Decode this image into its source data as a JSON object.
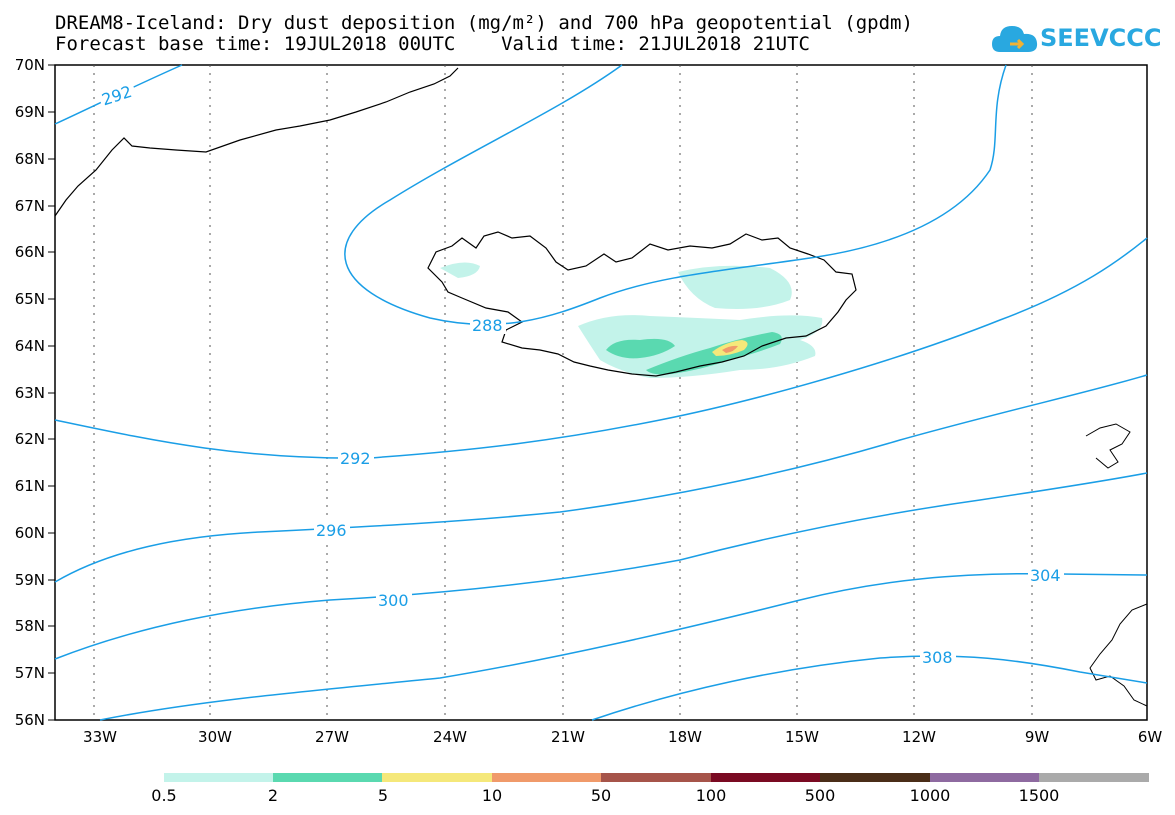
{
  "header": {
    "title_line1": "DREAM8-Iceland: Dry dust deposition (mg/m²) and 700 hPa geopotential (gpdm)",
    "title_line2": "Forecast base time: 19JUL2018 00UTC    Valid time: 21JUL2018 21UTC"
  },
  "logo": {
    "text": "SEEVCCC",
    "icon": "cloud-icon",
    "color": "#29a8e0"
  },
  "map": {
    "lat_labels": [
      "70N",
      "69N",
      "68N",
      "67N",
      "66N",
      "65N",
      "64N",
      "63N",
      "62N",
      "61N",
      "60N",
      "59N",
      "58N",
      "57N",
      "56N"
    ],
    "lon_labels": [
      "33W",
      "30W",
      "27W",
      "24W",
      "21W",
      "18W",
      "15W",
      "12W",
      "9W",
      "6W"
    ],
    "contour_color": "#1a9ee6",
    "contour_labels": [
      "292",
      "288",
      "292",
      "296",
      "300",
      "304",
      "308"
    ]
  },
  "colorbar": {
    "colors": [
      "#c3f3ea",
      "#5ad9b0",
      "#f5e87a",
      "#f09a6a",
      "#a6544a",
      "#7a0a22",
      "#4a2d18",
      "#8e6aa0",
      "#aaaaaa"
    ],
    "labels": [
      "0.5",
      "2",
      "5",
      "10",
      "50",
      "100",
      "500",
      "1000",
      "1500"
    ]
  }
}
